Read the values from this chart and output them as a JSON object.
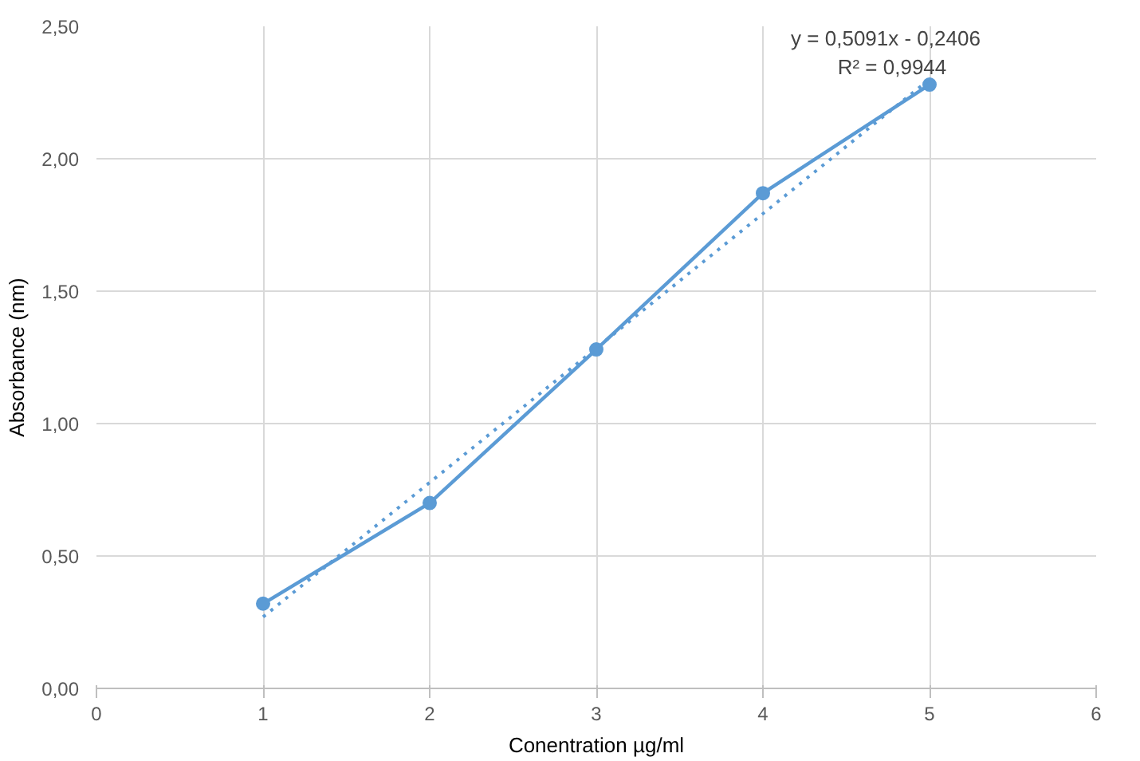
{
  "chart_data": {
    "type": "line",
    "xlabel": "Conentration µg/ml",
    "ylabel": "Absorbance (nm)",
    "x": [
      1,
      2,
      3,
      4,
      5
    ],
    "series": [
      {
        "color": "#5b9bd5",
        "values": [
          0.32,
          0.7,
          1.28,
          1.87,
          2.28
        ],
        "marker": "circle",
        "line_style": "solid"
      },
      {
        "type": "line",
        "color": "#5b9bd5",
        "x": [
          1,
          5
        ],
        "values": [
          0.27,
          2.3
        ],
        "marker": "none",
        "line_style": "dotted"
      }
    ],
    "xlim": [
      0,
      6
    ],
    "xticks": [
      0,
      1,
      2,
      3,
      4,
      5,
      6
    ],
    "ylim": [
      0,
      2.5
    ],
    "yticks": [
      {
        "value": 0,
        "label": "0,00"
      },
      {
        "value": 0.5,
        "label": "0,50"
      },
      {
        "value": 1,
        "label": "1,00"
      },
      {
        "value": 1.5,
        "label": "1,50"
      },
      {
        "value": 2,
        "label": "2,00"
      },
      {
        "value": 2.5,
        "label": "2,50"
      }
    ],
    "grid": true,
    "annotations": [
      "y = 0,5091x - 0,2406",
      "R² = 0,9944"
    ]
  }
}
